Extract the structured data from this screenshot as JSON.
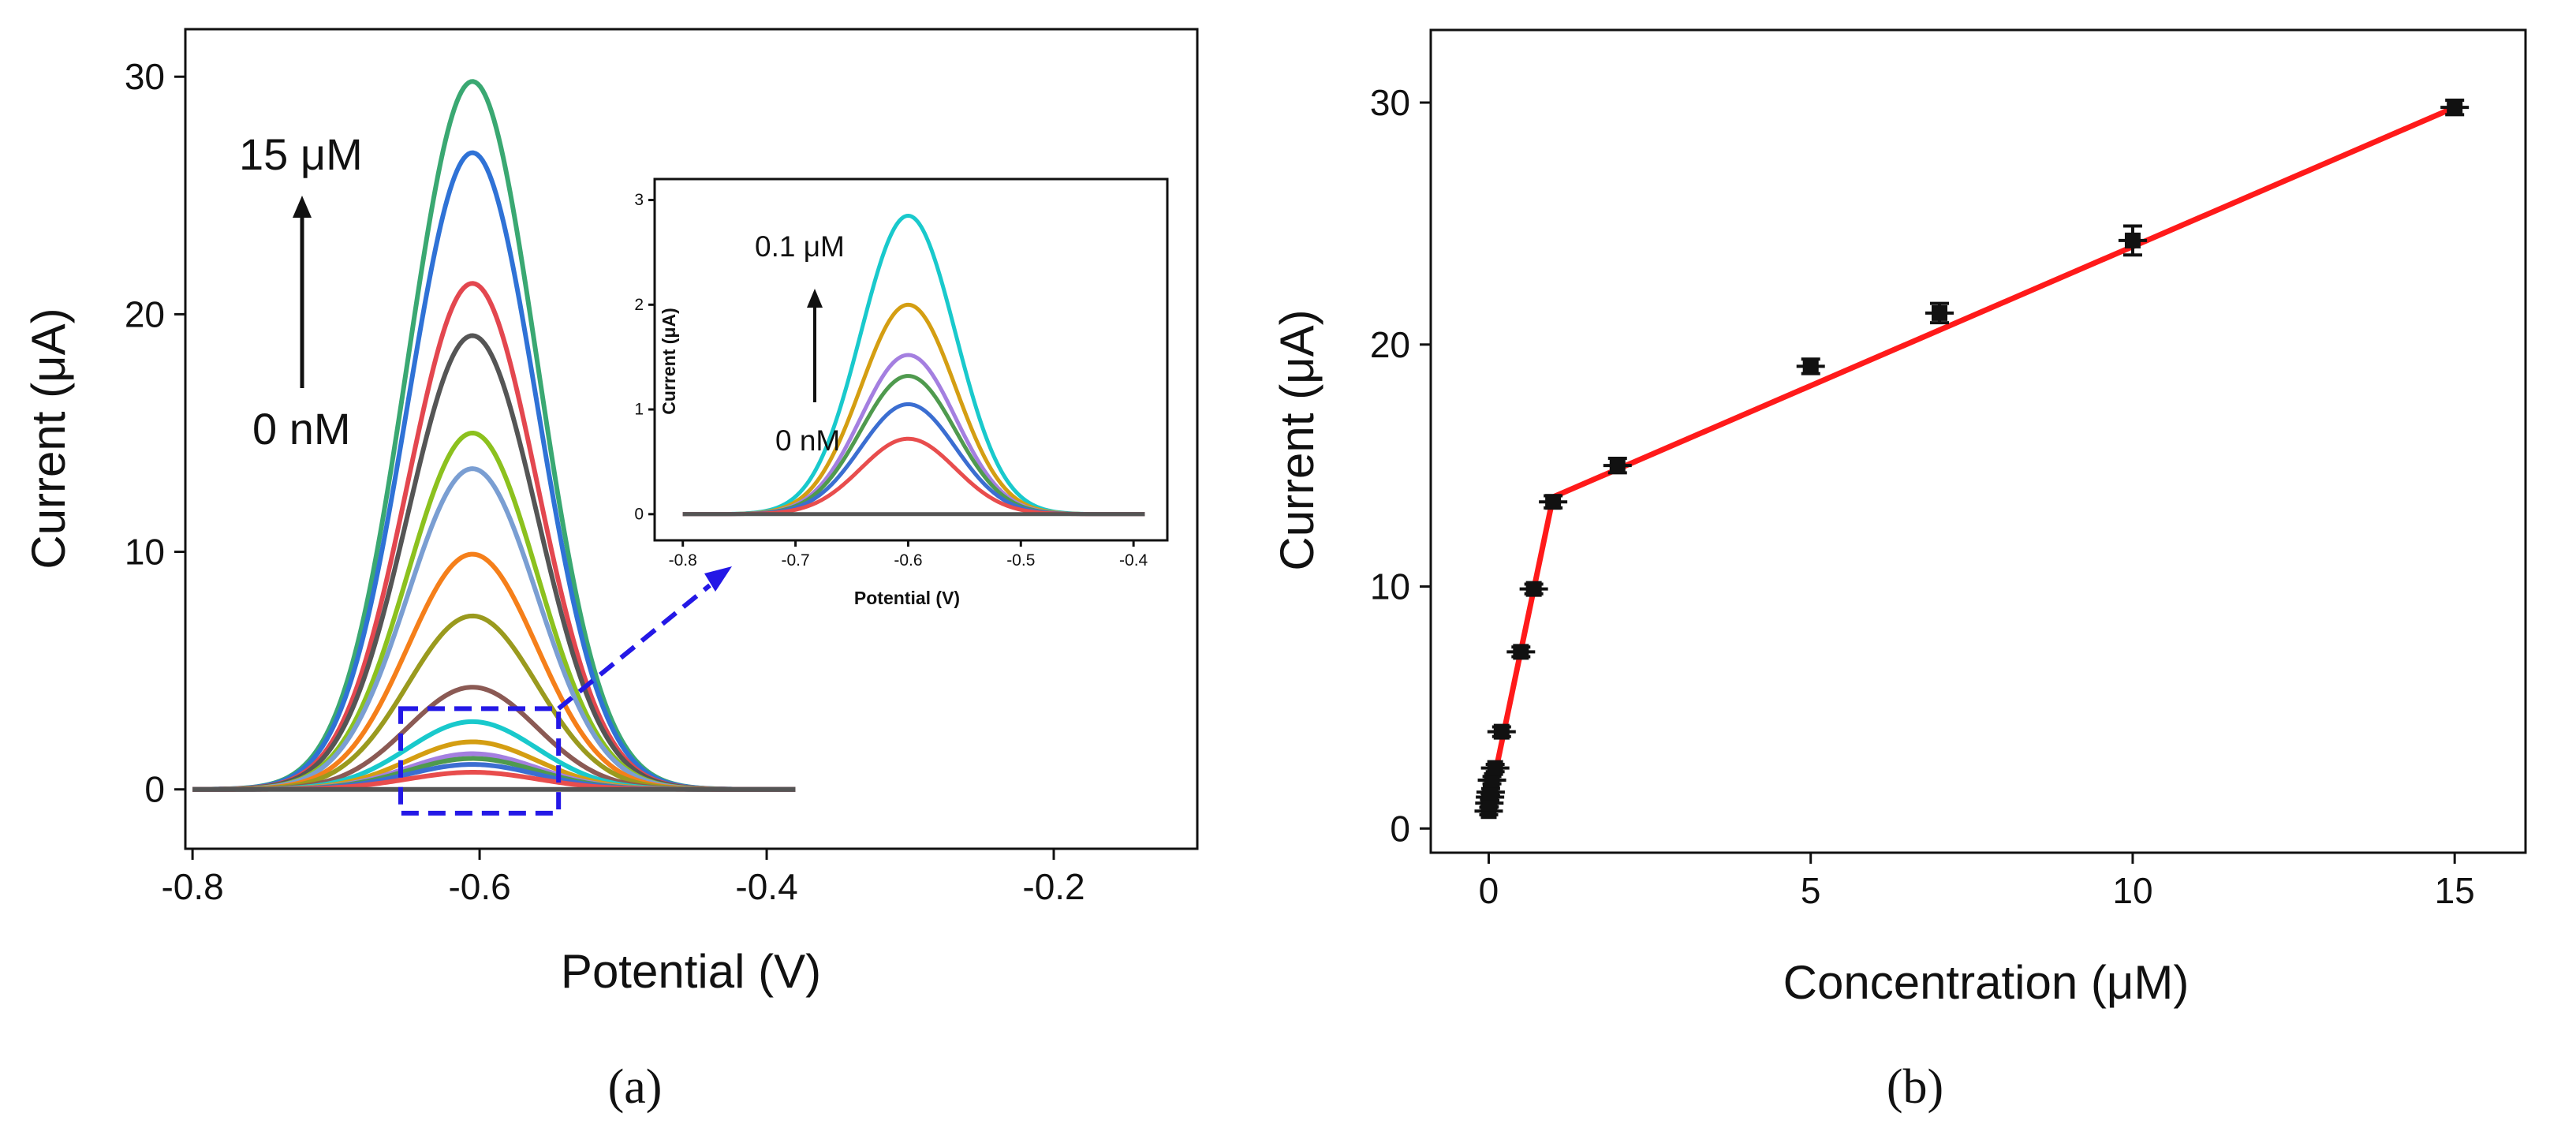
{
  "chart_data": [
    {
      "panel_label": "(a)",
      "type": "line",
      "xlabel": "Potential (V)",
      "ylabel": "Current (μA)",
      "xlim": [
        -0.805,
        -0.1
      ],
      "ylim": [
        -2.5,
        32
      ],
      "xticks": [
        "-0.8",
        "-0.6",
        "-0.4",
        "-0.2"
      ],
      "xtick_values": [
        -0.8,
        -0.6,
        -0.4,
        -0.2
      ],
      "yticks": [
        "0",
        "10",
        "20",
        "30"
      ],
      "ytick_values": [
        0,
        10,
        20,
        30
      ],
      "annotation_top": "15 μM",
      "annotation_bottom": "0 nM",
      "x_range": [
        -0.8,
        -0.38
      ],
      "peak_potential": -0.605,
      "peak_width": 0.045,
      "series": [
        {
          "peak": 29.8,
          "color": "#3aa872"
        },
        {
          "peak": 26.8,
          "color": "#2f72d6"
        },
        {
          "peak": 21.3,
          "color": "#e3474f"
        },
        {
          "peak": 19.1,
          "color": "#555555"
        },
        {
          "peak": 15.0,
          "color": "#8cc11e"
        },
        {
          "peak": 13.5,
          "color": "#7a9ed2"
        },
        {
          "peak": 9.9,
          "color": "#f57f1a"
        },
        {
          "peak": 7.3,
          "color": "#9a9a1e"
        },
        {
          "peak": 4.3,
          "color": "#8b5a54"
        },
        {
          "peak": 2.85,
          "color": "#19c9cc"
        },
        {
          "peak": 2.0,
          "color": "#d49e12"
        },
        {
          "peak": 1.5,
          "color": "#a47fe0"
        },
        {
          "peak": 1.3,
          "color": "#4f9a4e"
        },
        {
          "peak": 1.05,
          "color": "#3b6ed1"
        },
        {
          "peak": 0.72,
          "color": "#e84d4d"
        },
        {
          "peak": 0.0,
          "color": "#555555"
        }
      ],
      "zoom_box": {
        "x": [
          -0.655,
          -0.545
        ],
        "y": [
          -1.0,
          3.4
        ],
        "color": "#2418e6"
      },
      "inset": {
        "type": "line",
        "xlabel": "Potential (V)",
        "ylabel": "Current (μA)",
        "xlim": [
          -0.825,
          -0.37
        ],
        "ylim": [
          -0.25,
          3.2
        ],
        "xticks": [
          "-0.8",
          "-0.7",
          "-0.6",
          "-0.5",
          "-0.4"
        ],
        "xtick_values": [
          -0.8,
          -0.7,
          -0.6,
          -0.5,
          -0.4
        ],
        "yticks": [
          "0",
          "1",
          "2",
          "3"
        ],
        "ytick_values": [
          0,
          1,
          2,
          3
        ],
        "annotation_top": "0.1 μM",
        "annotation_bottom": "0 nM",
        "x_range": [
          -0.8,
          -0.39
        ],
        "peak_potential": -0.6,
        "peak_width": 0.042,
        "series": [
          {
            "peak": 2.85,
            "color": "#19c9cc"
          },
          {
            "peak": 2.0,
            "color": "#d49e12"
          },
          {
            "peak": 1.52,
            "color": "#a47fe0"
          },
          {
            "peak": 1.32,
            "color": "#4f9a4e"
          },
          {
            "peak": 1.05,
            "color": "#3b6ed1"
          },
          {
            "peak": 0.72,
            "color": "#e84d4d"
          },
          {
            "peak": 0.0,
            "color": "#555555"
          }
        ]
      }
    },
    {
      "panel_label": "(b)",
      "type": "scatter",
      "xlabel": "Concentration (μM)",
      "ylabel": "Current (μA)",
      "xlim": [
        -0.9,
        16.1
      ],
      "ylim": [
        -1.0,
        33.0
      ],
      "xticks": [
        "0",
        "5",
        "10",
        "15"
      ],
      "xtick_values": [
        0,
        5,
        10,
        15
      ],
      "yticks": [
        "0",
        "10",
        "20",
        "30"
      ],
      "ytick_values": [
        0,
        10,
        20,
        30
      ],
      "points": [
        {
          "x": 0,
          "y": 0.72,
          "err": 0.15
        },
        {
          "x": 0.01,
          "y": 1.05,
          "err": 0.15
        },
        {
          "x": 0.02,
          "y": 1.3,
          "err": 0.15
        },
        {
          "x": 0.03,
          "y": 1.5,
          "err": 0.15
        },
        {
          "x": 0.05,
          "y": 2.0,
          "err": 0.15
        },
        {
          "x": 0.1,
          "y": 2.5,
          "err": 0.15
        },
        {
          "x": 0.2,
          "y": 4.0,
          "err": 0.2
        },
        {
          "x": 0.5,
          "y": 7.3,
          "err": 0.2
        },
        {
          "x": 0.7,
          "y": 9.9,
          "err": 0.2
        },
        {
          "x": 1,
          "y": 13.5,
          "err": 0.25
        },
        {
          "x": 2,
          "y": 15.0,
          "err": 0.3
        },
        {
          "x": 5,
          "y": 19.1,
          "err": 0.3
        },
        {
          "x": 7,
          "y": 21.3,
          "err": 0.4
        },
        {
          "x": 10,
          "y": 24.3,
          "err": 0.6
        },
        {
          "x": 15,
          "y": 29.8,
          "err": 0.3
        }
      ],
      "fit_lines": [
        {
          "x": [
            0,
            1
          ],
          "y": [
            1.0,
            13.7
          ],
          "color": "#ff1a1a"
        },
        {
          "x": [
            1,
            15
          ],
          "y": [
            13.7,
            29.8
          ],
          "color": "#ff1a1a"
        }
      ]
    }
  ]
}
